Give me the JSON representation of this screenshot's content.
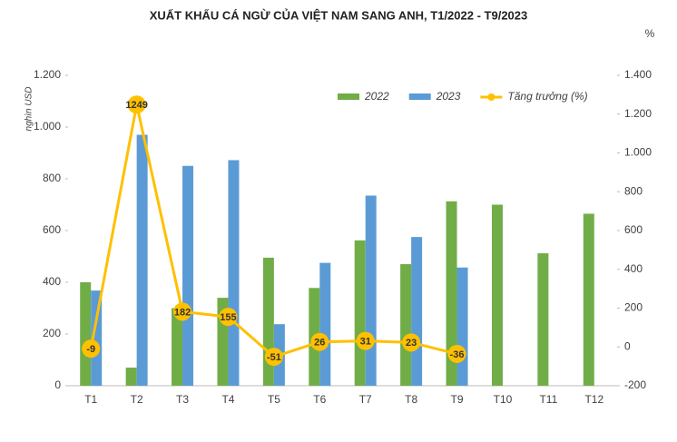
{
  "chart_data": {
    "type": "bar-line",
    "title": "XUẤT KHẨU CÁ NGỪ CỦA VIỆT NAM SANG ANH, T1/2022 - T9/2023",
    "y_label": "nghìn USD",
    "y2_label": "%",
    "categories": [
      "T1",
      "T2",
      "T3",
      "T4",
      "T5",
      "T6",
      "T7",
      "T8",
      "T9",
      "T10",
      "T11",
      "T12"
    ],
    "series": [
      {
        "name": "2022",
        "type": "bar",
        "color": "#70ad47",
        "values": [
          400,
          70,
          300,
          340,
          495,
          378,
          562,
          470,
          713,
          700,
          512,
          665
        ]
      },
      {
        "name": "2023",
        "type": "bar",
        "color": "#5b9bd5",
        "values": [
          368,
          970,
          850,
          872,
          238,
          475,
          735,
          575,
          457,
          null,
          null,
          null
        ]
      },
      {
        "name": "Tăng trưởng (%)",
        "type": "line",
        "axis": "y2",
        "color": "#ffc000",
        "values": [
          -9,
          1249,
          182,
          155,
          -51,
          26,
          31,
          23,
          -36,
          null,
          null,
          null
        ]
      }
    ],
    "ylim": [
      0,
      1200
    ],
    "yticks": [
      0,
      200,
      400,
      600,
      800,
      {
        "value": 1000,
        "label": "1.000"
      },
      {
        "value": 1200,
        "label": "1.200"
      }
    ],
    "y2lim": [
      -200,
      1400
    ],
    "y2ticks": [
      -200,
      0,
      200,
      400,
      600,
      800,
      {
        "value": 1000,
        "label": "1.000"
      },
      {
        "value": 1200,
        "label": "1.200"
      },
      {
        "value": 1400,
        "label": "1.400"
      }
    ],
    "legend": "top"
  }
}
